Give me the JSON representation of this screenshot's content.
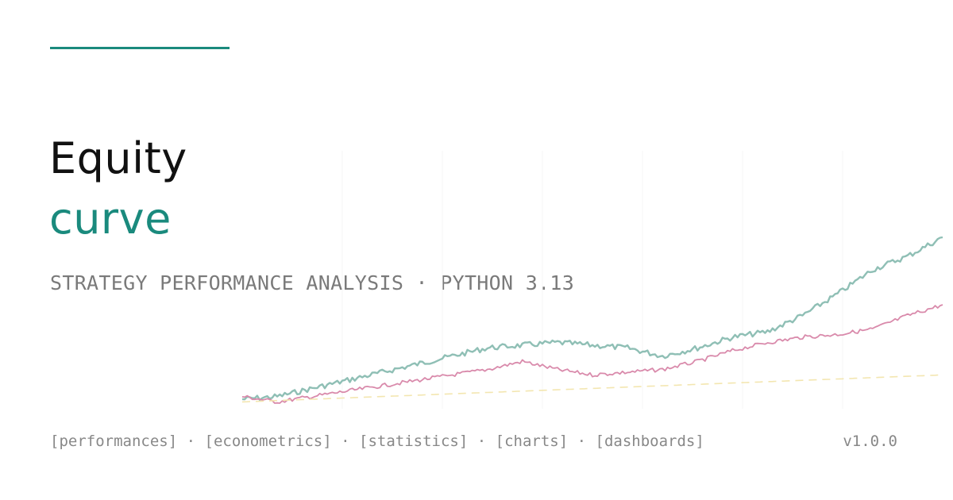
{
  "title": {
    "line1": "Equity",
    "line2": "curve"
  },
  "subtitle": "STRATEGY PERFORMANCE ANALYSIS · PYTHON 3.13",
  "tags": [
    "[performances]",
    "[econometrics]",
    "[statistics]",
    "[charts]",
    "[dashboards]"
  ],
  "tag_separator": "·",
  "version": "v1.0.0",
  "colors": {
    "accent": "#1a8a7d",
    "strategy": "#8fbfb5",
    "benchmark": "#d98aab",
    "baseline": "#f3e6b0"
  },
  "chart_data": {
    "type": "line",
    "title": "",
    "xlabel": "",
    "ylabel": "",
    "grid": false,
    "legend": "none",
    "ylim": [
      0,
      100
    ],
    "x": [
      0,
      5,
      10,
      15,
      20,
      25,
      30,
      35,
      40,
      45,
      50,
      55,
      60,
      65,
      70,
      75,
      80,
      85,
      90,
      95,
      100
    ],
    "series": [
      {
        "values": [
          5,
          6,
          9,
          12,
          15,
          18,
          21,
          24,
          25,
          26,
          25,
          24,
          21,
          24,
          28,
          30,
          36,
          44,
          53,
          58,
          65
        ]
      },
      {
        "values": [
          6,
          4,
          6,
          8,
          10,
          12,
          14,
          16,
          19,
          16,
          14,
          15,
          16,
          19,
          23,
          26,
          28,
          29,
          31,
          36,
          40
        ]
      },
      {
        "values": [
          4,
          4.5,
          5,
          5.5,
          6,
          6.5,
          7,
          7.5,
          8,
          8.5,
          9,
          9.5,
          10,
          10.5,
          11,
          11.5,
          12,
          12.5,
          13,
          13.5,
          14
        ]
      }
    ]
  }
}
